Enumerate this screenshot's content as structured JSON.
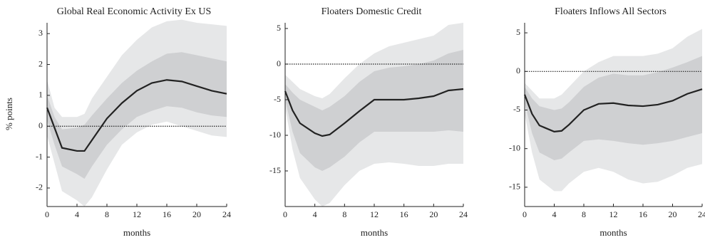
{
  "chart_data": [
    {
      "type": "line",
      "title": "Global Real Economic Activity Ex US",
      "xlabel": "months",
      "ylabel": "% points",
      "x": [
        0,
        1,
        2,
        4,
        5,
        6,
        8,
        10,
        12,
        14,
        16,
        18,
        20,
        22,
        24
      ],
      "xlim": [
        0,
        24
      ],
      "xticks": [
        0,
        4,
        8,
        12,
        16,
        20,
        24
      ],
      "ylim": [
        -2.6,
        3.35
      ],
      "yticks": [
        -2,
        -1,
        0,
        1,
        2,
        3
      ],
      "reference_line": 0,
      "bands": [
        {
          "color": "#e6e7e8",
          "lower": [
            -0.3,
            -1.2,
            -2.1,
            -2.4,
            -2.6,
            -2.3,
            -1.4,
            -0.6,
            -0.2,
            0.05,
            0.15,
            0.0,
            -0.15,
            -0.3,
            -0.35
          ],
          "upper": [
            1.5,
            0.6,
            0.3,
            0.3,
            0.4,
            0.9,
            1.6,
            2.3,
            2.8,
            3.2,
            3.4,
            3.45,
            3.35,
            3.3,
            3.25
          ]
        },
        {
          "color": "#cfd0d2",
          "lower": [
            0.2,
            -0.6,
            -1.3,
            -1.55,
            -1.7,
            -1.3,
            -0.6,
            -0.1,
            0.3,
            0.5,
            0.65,
            0.6,
            0.45,
            0.35,
            0.3
          ],
          "upper": [
            1.0,
            0.3,
            -0.1,
            -0.05,
            0.05,
            0.35,
            0.9,
            1.4,
            1.8,
            2.1,
            2.35,
            2.4,
            2.3,
            2.2,
            2.1
          ]
        }
      ],
      "series": [
        {
          "color": "#222222",
          "values": [
            0.6,
            -0.05,
            -0.7,
            -0.8,
            -0.8,
            -0.45,
            0.25,
            0.75,
            1.15,
            1.4,
            1.5,
            1.45,
            1.3,
            1.15,
            1.05
          ]
        }
      ]
    },
    {
      "type": "line",
      "title": "Floaters Domestic Credit",
      "xlabel": "months",
      "x": [
        0,
        1,
        2,
        4,
        5,
        6,
        8,
        10,
        12,
        14,
        16,
        18,
        20,
        22,
        24
      ],
      "xlim": [
        0,
        24
      ],
      "xticks": [
        0,
        4,
        8,
        12,
        16,
        20,
        24
      ],
      "ylim": [
        -20,
        5.8
      ],
      "yticks": [
        -15,
        -10,
        -5,
        0,
        5
      ],
      "reference_line": 0,
      "bands": [
        {
          "color": "#e6e7e8",
          "lower": [
            -6,
            -12,
            -16,
            -19,
            -20,
            -19.5,
            -17,
            -15,
            -14,
            -13.8,
            -14,
            -14.3,
            -14.3,
            -14,
            -14
          ],
          "upper": [
            -1.5,
            -2.5,
            -3.5,
            -4.5,
            -4.8,
            -4.2,
            -2,
            0,
            1.5,
            2.5,
            3,
            3.5,
            4,
            5.5,
            5.8
          ]
        },
        {
          "color": "#cfd0d2",
          "lower": [
            -5,
            -9.5,
            -12.5,
            -14.5,
            -15,
            -14.5,
            -13,
            -11,
            -9.5,
            -9.5,
            -9.5,
            -9.5,
            -9.5,
            -9.3,
            -9.5
          ],
          "upper": [
            -2.8,
            -4,
            -5,
            -6,
            -6.5,
            -6,
            -4.5,
            -2.5,
            -1,
            -0.5,
            -0.3,
            0,
            0.5,
            1.5,
            2
          ]
        }
      ],
      "series": [
        {
          "color": "#222222",
          "values": [
            -3.8,
            -6.5,
            -8.3,
            -9.7,
            -10.1,
            -9.9,
            -8.3,
            -6.6,
            -5.0,
            -5.0,
            -5.0,
            -4.8,
            -4.5,
            -3.7,
            -3.5
          ]
        }
      ]
    },
    {
      "type": "line",
      "title": "Floaters Inflows All Sectors",
      "xlabel": "months",
      "x": [
        0,
        1,
        2,
        4,
        5,
        6,
        8,
        10,
        12,
        14,
        16,
        18,
        20,
        22,
        24
      ],
      "xlim": [
        0,
        24
      ],
      "xticks": [
        0,
        4,
        8,
        12,
        16,
        20,
        24
      ],
      "ylim": [
        -17.5,
        6.3
      ],
      "yticks": [
        -15,
        -10,
        -5,
        0,
        5
      ],
      "reference_line": 0,
      "bands": [
        {
          "color": "#e6e7e8",
          "lower": [
            -5.5,
            -10.5,
            -14,
            -15.5,
            -15.5,
            -14.5,
            -13,
            -12.5,
            -13,
            -14,
            -14.5,
            -14.3,
            -13.5,
            -12.5,
            -12
          ],
          "upper": [
            -1.5,
            -2.5,
            -3.5,
            -3.5,
            -3,
            -2,
            0,
            1.2,
            2,
            2,
            2,
            2.3,
            3,
            4.5,
            5.5
          ]
        },
        {
          "color": "#cfd0d2",
          "lower": [
            -4,
            -8,
            -10.5,
            -11.5,
            -11.3,
            -10.5,
            -9,
            -8.8,
            -9,
            -9.3,
            -9.5,
            -9.3,
            -9,
            -8.5,
            -8
          ],
          "upper": [
            -2,
            -3.5,
            -4.5,
            -5,
            -4.8,
            -4,
            -2,
            -0.8,
            -0.3,
            -0.5,
            -0.5,
            -0.1,
            0.5,
            1.2,
            2
          ]
        }
      ],
      "series": [
        {
          "color": "#222222",
          "values": [
            -3,
            -5.5,
            -7,
            -7.8,
            -7.7,
            -6.9,
            -5,
            -4.2,
            -4.1,
            -4.4,
            -4.5,
            -4.3,
            -3.8,
            -2.9,
            -2.3
          ]
        }
      ]
    }
  ]
}
